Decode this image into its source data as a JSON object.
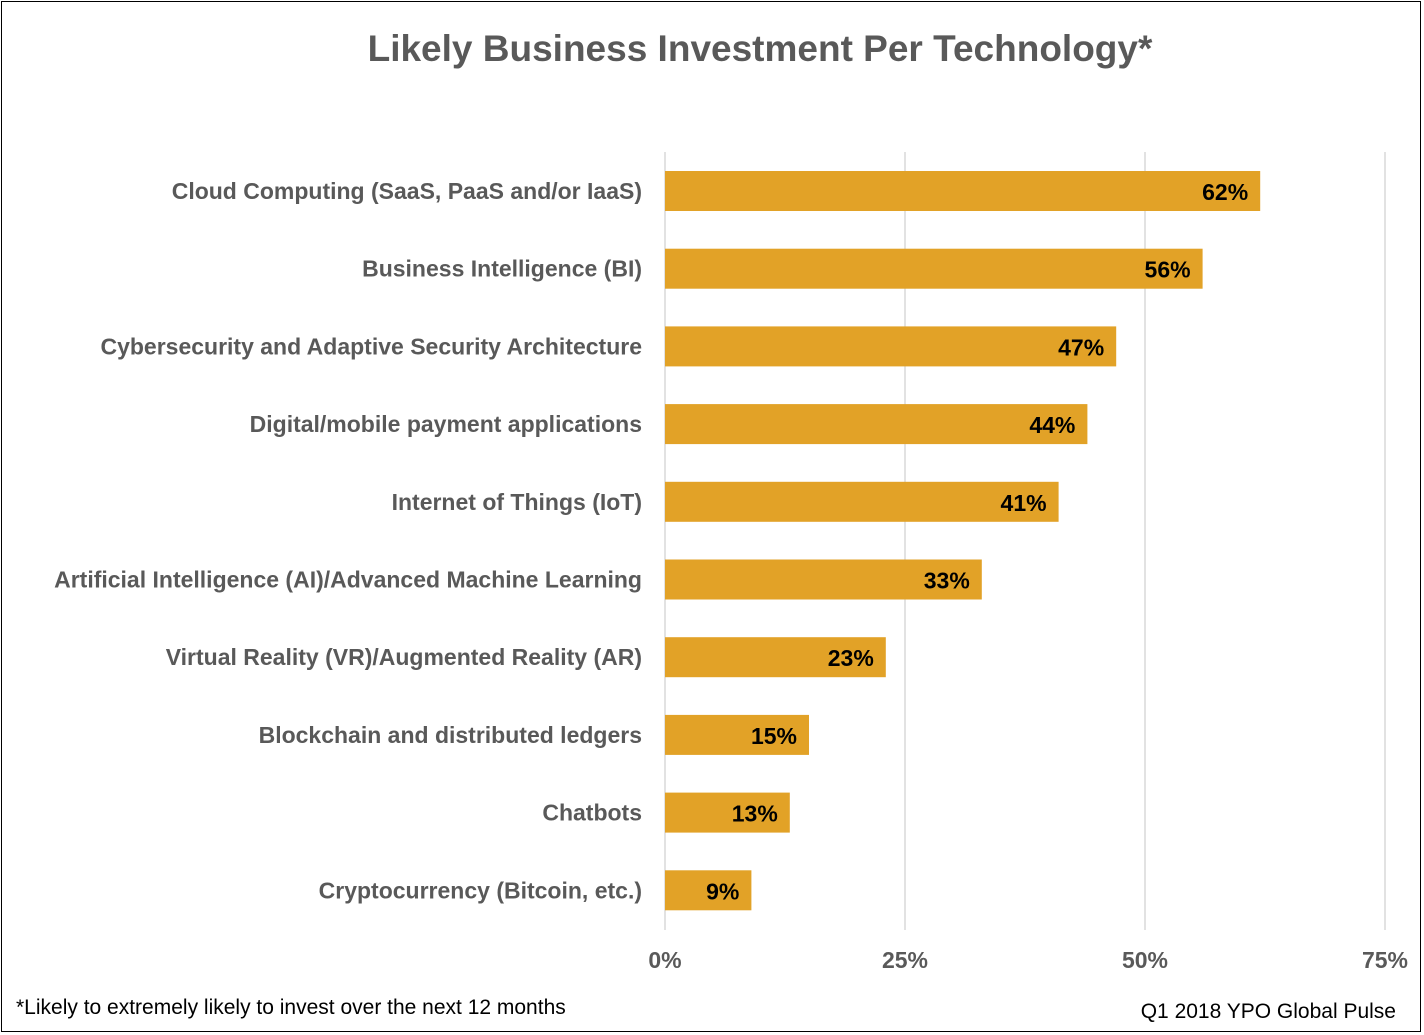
{
  "colors": {
    "bar": "#E2A227",
    "grid": "#D9D9D9",
    "label_text": "#595959",
    "data_label_text": "#000000",
    "border": "#000000"
  },
  "footnote": "*Likely to extremely likely to invest over the next 12 months",
  "source": "Q1 2018 YPO Global Pulse",
  "chart_data": {
    "type": "bar",
    "orientation": "horizontal",
    "title": "Likely Business Investment Per Technology*",
    "xlabel": "",
    "ylabel": "",
    "xlim": [
      0,
      75
    ],
    "x_ticks": [
      0,
      25,
      50,
      75
    ],
    "x_tick_labels": [
      "0%",
      "25%",
      "50%",
      "75%"
    ],
    "grid": true,
    "legend": "none",
    "categories": [
      "Cloud Computing (SaaS, PaaS and/or IaaS)",
      "Business Intelligence (BI)",
      "Cybersecurity and Adaptive Security Architecture",
      "Digital/mobile payment applications",
      "Internet of Things (IoT)",
      "Artificial Intelligence (AI)/Advanced Machine Learning",
      "Virtual Reality (VR)/Augmented Reality (AR)",
      "Blockchain and distributed ledgers",
      "Chatbots",
      "Cryptocurrency (Bitcoin, etc.)"
    ],
    "values": [
      62,
      56,
      47,
      44,
      41,
      33,
      23,
      15,
      13,
      9
    ],
    "data_labels": [
      "62%",
      "56%",
      "47%",
      "44%",
      "41%",
      "33%",
      "23%",
      "15%",
      "13%",
      "9%"
    ]
  }
}
